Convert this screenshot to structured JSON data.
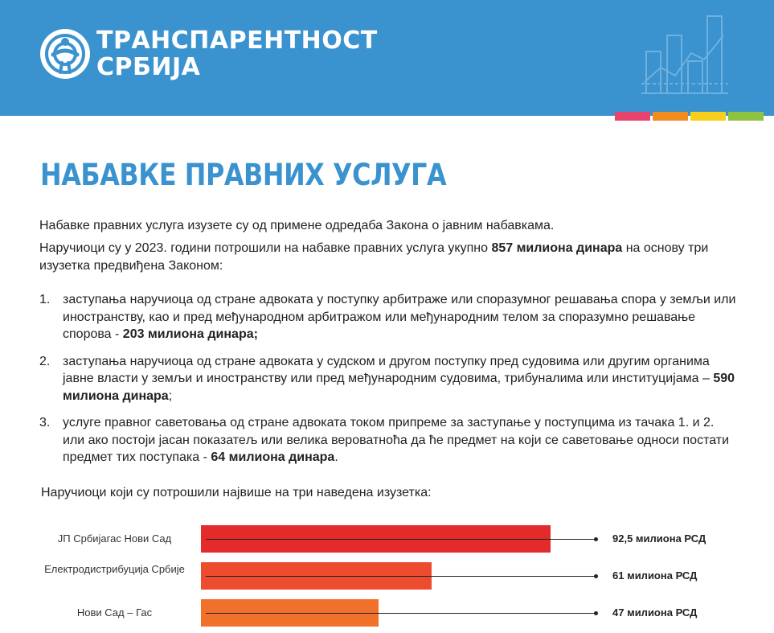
{
  "brand": {
    "name_line1": "ТРАНСПАРЕНТНОСТ",
    "name_line2": "СРБИЈА",
    "header_color": "#3a92cf",
    "stripe_colors": [
      "#e8436e",
      "#f28c1e",
      "#f7cf1a",
      "#8fc23f"
    ]
  },
  "page": {
    "title": "НАБАВКЕ ПРАВНИХ УСЛУГА",
    "intro": "Набавке правних услуга изузете су од примене одредаба Закона о јавним набавкама.",
    "summary_before": "Наручиоци су у 2023. години потрошили на набавке правних услуга укупно ",
    "summary_bold": "857 милиона динара",
    "summary_after": " на основу три изузетка предвиђена Законом:",
    "items": [
      {
        "num": "1.",
        "text": "заступања наручиоца од стране адвоката у поступку арбитраже или споразумног решавања спора у земљи или иностранству, као и пред међународном арбитражом или међународним телом за споразумно решавање спорова - ",
        "bold": "203 милиона  динара;",
        "tail": ""
      },
      {
        "num": "2.",
        "text": "заступања наручиоца од стране адвоката у судском и другом поступку пред судовима или другим органима јавне власти у земљи и иностранству или пред међународним судовима, трибуналима или институцијама – ",
        "bold": "590 милиона динара",
        "tail": ";"
      },
      {
        "num": "3.",
        "text": "услуге правног саветовања од стране адвоката током припреме за заступање у поступцима из тачака 1. и 2. или ако постоји јасан показатељ или велика вероватноћа да ће предмет на који се саветовање односи постати предмет тих поступака - ",
        "bold": "64 милиона динара",
        "tail": "."
      }
    ],
    "chart_caption": "Наручиоци који су потрошили највише на три наведена изузетка:"
  },
  "chart_data": {
    "type": "bar",
    "orientation": "horizontal",
    "categories": [
      "ЈП Србијагас Нови Сад",
      "Електродистрибуција Србије",
      "Нови Сад – Гас"
    ],
    "values": [
      92.5,
      61,
      47
    ],
    "value_labels": [
      "92,5 милиона РСД",
      "61 милиона РСД",
      "47 милиона РСД"
    ],
    "colors": [
      "#e32b2b",
      "#ee4c2e",
      "#f2712a"
    ],
    "title": "",
    "xlabel": "",
    "ylabel": ""
  }
}
